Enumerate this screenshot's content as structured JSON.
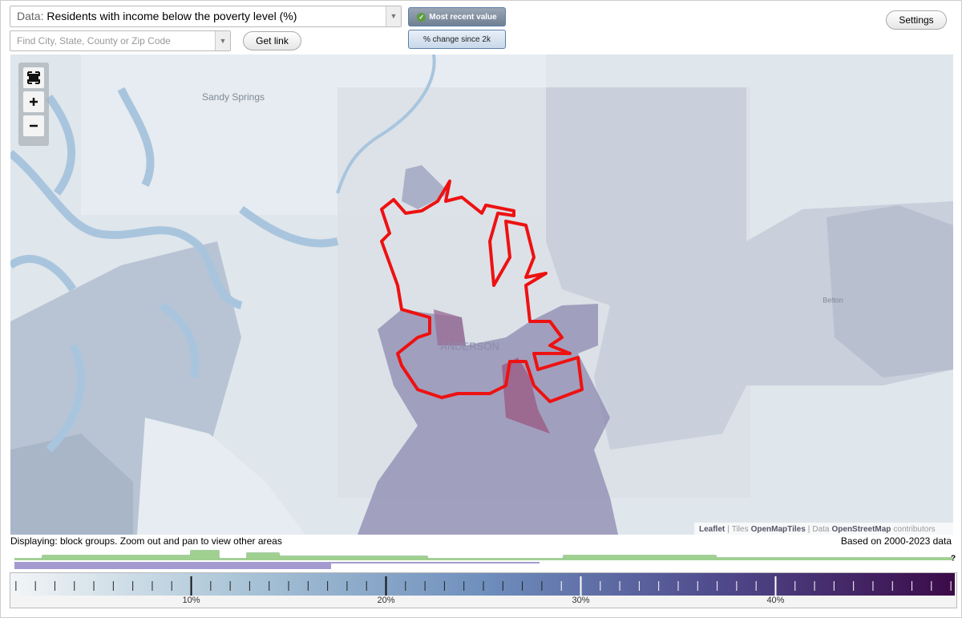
{
  "header": {
    "data_label": "Data:",
    "data_value": "Residents with income below the poverty level (%)",
    "search_placeholder": "Find City, State, County or Zip Code",
    "get_link": "Get link",
    "mode_buttons": [
      "Most recent value",
      "% change since 2k"
    ],
    "settings": "Settings"
  },
  "map": {
    "labels": [
      "Sandy Springs",
      "ANDERSON",
      "Belton"
    ],
    "attribution": [
      "Leaflet",
      "|",
      "Tiles",
      "OpenMapTiles",
      "|",
      "Data",
      "OpenStreetMap",
      "contributors"
    ]
  },
  "footer": {
    "displaying": "Displaying: block groups. Zoom out and pan to view other areas",
    "based_on": "Based on 2000-2023 data",
    "unknown": "?"
  },
  "legend": {
    "range": [
      0.8,
      49.2
    ],
    "ticks": [
      {
        "value": 10,
        "label": "10%"
      },
      {
        "value": 20,
        "label": "20%"
      },
      {
        "value": 30,
        "label": "30%"
      },
      {
        "value": 40,
        "label": "40%"
      }
    ],
    "minor_ticks": [
      1,
      2,
      3,
      4,
      5,
      6,
      7,
      8,
      9,
      11,
      12,
      13,
      14,
      15,
      16,
      17,
      18,
      19,
      21,
      22,
      23,
      24,
      25,
      26,
      27,
      28,
      29,
      31,
      32,
      33,
      34,
      35,
      36,
      37,
      38,
      39,
      41,
      42,
      43,
      44,
      45,
      46,
      47,
      48,
      49
    ],
    "colors": [
      "#f2f5f7",
      "#a8c3d6",
      "#6f8fbd",
      "#4f4a8c",
      "#3b0a48"
    ]
  }
}
